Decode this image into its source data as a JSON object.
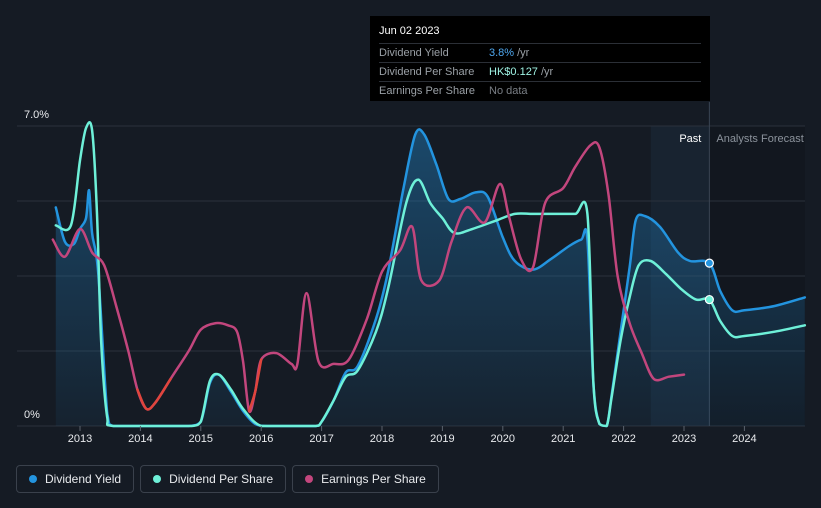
{
  "tooltip": {
    "date": "Jun 02 2023",
    "rows": [
      {
        "label": "Dividend Yield",
        "value": "3.8%",
        "unit": "/yr",
        "color": "#2394df"
      },
      {
        "label": "Dividend Per Share",
        "value": "HK$0.127",
        "unit": "/yr",
        "color": "#6ef0d8"
      },
      {
        "label": "Earnings Per Share",
        "value": "No data",
        "unit": "",
        "color": "#7a7f86"
      }
    ]
  },
  "legend": [
    {
      "label": "Dividend Yield",
      "color": "#2394df"
    },
    {
      "label": "Dividend Per Share",
      "color": "#6ef0d8"
    },
    {
      "label": "Earnings Per Share",
      "color": "#c2467d"
    }
  ],
  "chart_data": {
    "type": "line",
    "y_ticks": [
      {
        "value": 7,
        "label": "7.0%"
      },
      {
        "value": 0,
        "label": "0%"
      }
    ],
    "ylim": [
      0,
      7
    ],
    "xlim": [
      2012.1,
      2025.0
    ],
    "x_ticks": [
      "2013",
      "2014",
      "2015",
      "2016",
      "2017",
      "2018",
      "2019",
      "2020",
      "2021",
      "2022",
      "2023",
      "2024"
    ],
    "grid": "horizontal",
    "past_label": "Past",
    "forecast_label": "Analysts Forecast",
    "past_region_start": 2022.45,
    "forecast_start": 2023.42,
    "marker_x": 2023.42,
    "series": [
      {
        "name": "Dividend Yield",
        "color": "#2394df",
        "fill": true,
        "points": [
          [
            2012.6,
            5.1
          ],
          [
            2012.75,
            4.3
          ],
          [
            2012.9,
            4.25
          ],
          [
            2013.0,
            4.6
          ],
          [
            2013.1,
            4.85
          ],
          [
            2013.15,
            5.5
          ],
          [
            2013.2,
            4.5
          ],
          [
            2013.3,
            3.6
          ],
          [
            2013.45,
            0.3
          ],
          [
            2013.55,
            0
          ],
          [
            2014.0,
            0
          ],
          [
            2014.5,
            0
          ],
          [
            2014.8,
            0
          ],
          [
            2015.0,
            0.1
          ],
          [
            2015.15,
            1.0
          ],
          [
            2015.3,
            1.2
          ],
          [
            2015.5,
            0.8
          ],
          [
            2015.7,
            0.35
          ],
          [
            2015.9,
            0.05
          ],
          [
            2016.1,
            0
          ],
          [
            2016.5,
            0
          ],
          [
            2016.9,
            0
          ],
          [
            2017.0,
            0.1
          ],
          [
            2017.2,
            0.6
          ],
          [
            2017.4,
            1.25
          ],
          [
            2017.6,
            1.4
          ],
          [
            2017.9,
            2.5
          ],
          [
            2018.1,
            3.6
          ],
          [
            2018.35,
            5.5
          ],
          [
            2018.55,
            6.8
          ],
          [
            2018.7,
            6.8
          ],
          [
            2018.9,
            6.1
          ],
          [
            2019.1,
            5.3
          ],
          [
            2019.3,
            5.3
          ],
          [
            2019.55,
            5.45
          ],
          [
            2019.75,
            5.35
          ],
          [
            2020.0,
            4.4
          ],
          [
            2020.2,
            3.85
          ],
          [
            2020.5,
            3.65
          ],
          [
            2020.8,
            3.9
          ],
          [
            2021.1,
            4.2
          ],
          [
            2021.3,
            4.35
          ],
          [
            2021.4,
            4.35
          ],
          [
            2021.5,
            1.0
          ],
          [
            2021.6,
            0.05
          ],
          [
            2021.72,
            0
          ],
          [
            2021.8,
            0.7
          ],
          [
            2021.95,
            2.2
          ],
          [
            2022.1,
            3.7
          ],
          [
            2022.2,
            4.8
          ],
          [
            2022.35,
            4.9
          ],
          [
            2022.6,
            4.65
          ],
          [
            2022.9,
            4.05
          ],
          [
            2023.1,
            3.85
          ],
          [
            2023.42,
            3.8
          ],
          [
            2023.6,
            3.15
          ],
          [
            2023.8,
            2.7
          ],
          [
            2024.0,
            2.7
          ],
          [
            2024.5,
            2.8
          ],
          [
            2025.0,
            3.0
          ]
        ]
      },
      {
        "name": "Dividend Per Share",
        "color": "#6ef0d8",
        "fill": false,
        "points": [
          [
            2012.6,
            4.68
          ],
          [
            2012.85,
            4.68
          ],
          [
            2013.0,
            6.2
          ],
          [
            2013.1,
            6.95
          ],
          [
            2013.2,
            6.9
          ],
          [
            2013.28,
            5.0
          ],
          [
            2013.35,
            2.0
          ],
          [
            2013.45,
            0.2
          ],
          [
            2013.55,
            0
          ],
          [
            2014.5,
            0
          ],
          [
            2014.85,
            0
          ],
          [
            2015.0,
            0.1
          ],
          [
            2015.15,
            1.05
          ],
          [
            2015.3,
            1.2
          ],
          [
            2015.5,
            0.85
          ],
          [
            2015.7,
            0.4
          ],
          [
            2016.0,
            0
          ],
          [
            2016.5,
            0
          ],
          [
            2016.9,
            0
          ],
          [
            2017.0,
            0.1
          ],
          [
            2017.2,
            0.6
          ],
          [
            2017.4,
            1.15
          ],
          [
            2017.6,
            1.3
          ],
          [
            2017.9,
            2.2
          ],
          [
            2018.1,
            3.2
          ],
          [
            2018.4,
            5.2
          ],
          [
            2018.6,
            5.75
          ],
          [
            2018.8,
            5.2
          ],
          [
            2019.0,
            4.85
          ],
          [
            2019.2,
            4.5
          ],
          [
            2019.5,
            4.6
          ],
          [
            2019.9,
            4.8
          ],
          [
            2020.2,
            4.95
          ],
          [
            2020.5,
            4.95
          ],
          [
            2020.9,
            4.95
          ],
          [
            2021.2,
            4.95
          ],
          [
            2021.4,
            4.95
          ],
          [
            2021.5,
            1.0
          ],
          [
            2021.6,
            0.05
          ],
          [
            2021.72,
            0
          ],
          [
            2021.8,
            0.65
          ],
          [
            2021.95,
            2.0
          ],
          [
            2022.1,
            3.0
          ],
          [
            2022.25,
            3.75
          ],
          [
            2022.45,
            3.85
          ],
          [
            2022.7,
            3.55
          ],
          [
            2022.95,
            3.2
          ],
          [
            2023.2,
            2.95
          ],
          [
            2023.42,
            2.95
          ],
          [
            2023.6,
            2.45
          ],
          [
            2023.8,
            2.1
          ],
          [
            2024.0,
            2.1
          ],
          [
            2024.5,
            2.2
          ],
          [
            2025.0,
            2.35
          ]
        ]
      },
      {
        "name": "Earnings Per Share",
        "color": "#c2467d",
        "negative_color": "#e0453d",
        "fill": false,
        "points": [
          [
            2012.55,
            4.35
          ],
          [
            2012.75,
            3.95
          ],
          [
            2013.0,
            4.6
          ],
          [
            2013.2,
            4.05
          ],
          [
            2013.4,
            3.75
          ],
          [
            2013.6,
            2.8
          ],
          [
            2013.8,
            1.75
          ],
          [
            2013.95,
            0.85
          ],
          [
            2014.1,
            0.4
          ],
          [
            2014.25,
            0.55
          ],
          [
            2014.5,
            1.1
          ],
          [
            2014.8,
            1.75
          ],
          [
            2015.0,
            2.25
          ],
          [
            2015.25,
            2.4
          ],
          [
            2015.45,
            2.35
          ],
          [
            2015.6,
            2.2
          ],
          [
            2015.7,
            1.5
          ],
          [
            2015.8,
            0.35
          ],
          [
            2015.9,
            0.8
          ],
          [
            2016.0,
            1.55
          ],
          [
            2016.25,
            1.7
          ],
          [
            2016.5,
            1.45
          ],
          [
            2016.6,
            1.45
          ],
          [
            2016.75,
            3.1
          ],
          [
            2016.95,
            1.5
          ],
          [
            2017.2,
            1.45
          ],
          [
            2017.45,
            1.55
          ],
          [
            2017.75,
            2.5
          ],
          [
            2018.0,
            3.6
          ],
          [
            2018.3,
            4.1
          ],
          [
            2018.5,
            4.65
          ],
          [
            2018.65,
            3.4
          ],
          [
            2018.95,
            3.4
          ],
          [
            2019.15,
            4.3
          ],
          [
            2019.4,
            5.1
          ],
          [
            2019.7,
            4.75
          ],
          [
            2019.95,
            5.65
          ],
          [
            2020.1,
            4.9
          ],
          [
            2020.3,
            3.9
          ],
          [
            2020.5,
            3.7
          ],
          [
            2020.7,
            5.2
          ],
          [
            2021.0,
            5.55
          ],
          [
            2021.2,
            6.05
          ],
          [
            2021.45,
            6.55
          ],
          [
            2021.6,
            6.5
          ],
          [
            2021.75,
            5.4
          ],
          [
            2021.9,
            3.5
          ],
          [
            2022.1,
            2.4
          ],
          [
            2022.3,
            1.7
          ],
          [
            2022.5,
            1.1
          ],
          [
            2022.75,
            1.15
          ],
          [
            2023.0,
            1.2
          ]
        ]
      }
    ]
  }
}
